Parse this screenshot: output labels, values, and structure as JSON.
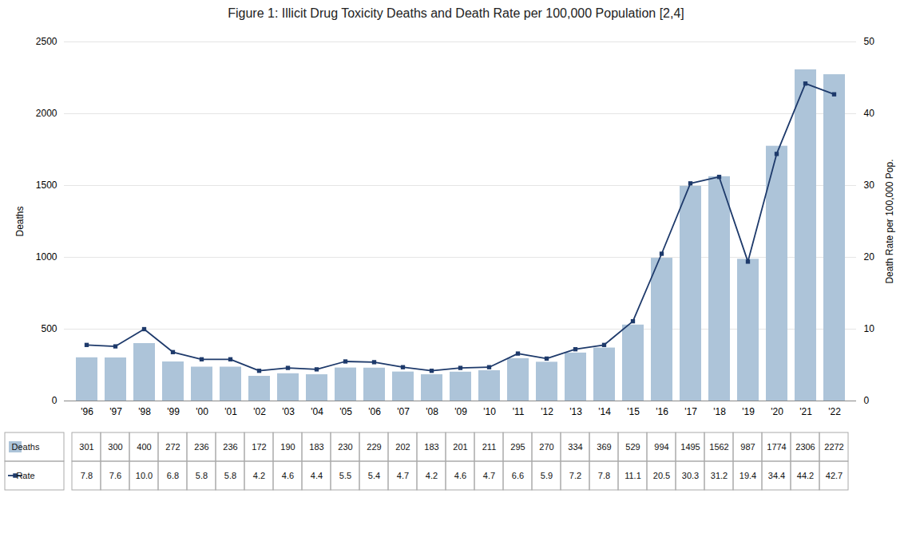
{
  "chart_data": {
    "type": "bar",
    "title": "Figure 1: Illicit Drug Toxicity Deaths and Death Rate per 100,000 Population [2,4]",
    "categories": [
      "'96",
      "'97",
      "'98",
      "'99",
      "'00",
      "'01",
      "'02",
      "'03",
      "'04",
      "'05",
      "'06",
      "'07",
      "'08",
      "'09",
      "'10",
      "'11",
      "'12",
      "'13",
      "'14",
      "'15",
      "'16",
      "'17",
      "'18",
      "'19",
      "'20",
      "'21",
      "'22"
    ],
    "series": [
      {
        "name": "Deaths",
        "type": "bar",
        "color": "#adc4d9",
        "values": [
          301,
          300,
          400,
          272,
          236,
          236,
          172,
          190,
          183,
          230,
          229,
          202,
          183,
          201,
          211,
          295,
          270,
          334,
          369,
          529,
          994,
          1495,
          1562,
          987,
          1774,
          2306,
          2272
        ]
      },
      {
        "name": "Rate",
        "type": "line",
        "axis": "y2",
        "color": "#1e3a6b",
        "marker": "square",
        "values": [
          7.8,
          7.6,
          10,
          6.8,
          5.8,
          5.8,
          4.2,
          4.6,
          4.4,
          5.5,
          5.4,
          4.7,
          4.2,
          4.6,
          4.7,
          6.6,
          5.9,
          7.2,
          7.8,
          11.1,
          20.5,
          30.3,
          31.2,
          19.4,
          34.4,
          44.2,
          42.7
        ],
        "value_labels": [
          "7.8",
          "7.6",
          "10.0",
          "6.8",
          "5.8",
          "5.8",
          "4.2",
          "4.6",
          "4.4",
          "5.5",
          "5.4",
          "4.7",
          "4.2",
          "4.6",
          "4.7",
          "6.6",
          "5.9",
          "7.2",
          "7.8",
          "11.1",
          "20.5",
          "30.3",
          "31.2",
          "19.4",
          "34.4",
          "44.2",
          "42.7"
        ]
      }
    ],
    "ylabel": "Deaths",
    "y2label": "Death Rate per 100,000 Pop.",
    "ylim": [
      0,
      2500
    ],
    "yticks": [
      0,
      500,
      1000,
      1500,
      2000,
      2500
    ],
    "y2lim": [
      0,
      50
    ],
    "y2ticks": [
      0,
      10,
      20,
      30,
      40,
      50
    ],
    "grid": true,
    "legend": "bottom",
    "data_labels": true
  }
}
